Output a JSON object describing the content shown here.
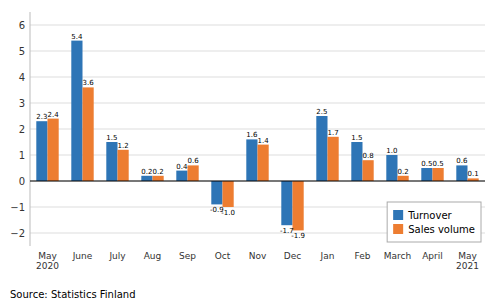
{
  "chart_data": {
    "type": "bar",
    "categories": [
      "May\n2020",
      "June",
      "July",
      "Aug",
      "Sep",
      "Oct",
      "Nov",
      "Dec",
      "Jan",
      "Feb",
      "March",
      "April",
      "May\n2021"
    ],
    "series": [
      {
        "name": "Turnover",
        "color": "#2e75b6",
        "values": [
          2.3,
          5.4,
          1.5,
          0.2,
          0.4,
          -0.9,
          1.6,
          -1.7,
          2.5,
          1.5,
          1.0,
          0.5,
          0.6
        ],
        "value_labels": [
          "2.3",
          "5.4",
          "1.5",
          "0.2",
          "0.4",
          "-0.9",
          "1.6",
          "-1.7",
          "2.5",
          "1.5",
          "1.0",
          "0.5",
          "0.6"
        ]
      },
      {
        "name": "Sales volume",
        "color": "#ed7d31",
        "values": [
          2.4,
          3.6,
          1.2,
          0.2,
          0.6,
          -1.0,
          1.4,
          -1.9,
          1.7,
          0.8,
          0.2,
          0.5,
          0.1
        ],
        "value_labels": [
          "2.4",
          "3.6",
          "1.2",
          "0.2",
          "0.6",
          "-1.0",
          "1.4",
          "-1.9",
          "1.7",
          "0.8",
          "0.2",
          "0.5",
          "0.1"
        ]
      }
    ],
    "ylim": [
      -2.5,
      6.5
    ],
    "yticks": [
      {
        "value": -2,
        "label": "−2"
      },
      {
        "value": -1,
        "label": "−1"
      },
      0,
      1,
      2,
      3,
      4,
      5,
      6
    ],
    "grid": true,
    "legend": "lower right",
    "data_labels": true,
    "source": "Source: Statistics Finland"
  }
}
